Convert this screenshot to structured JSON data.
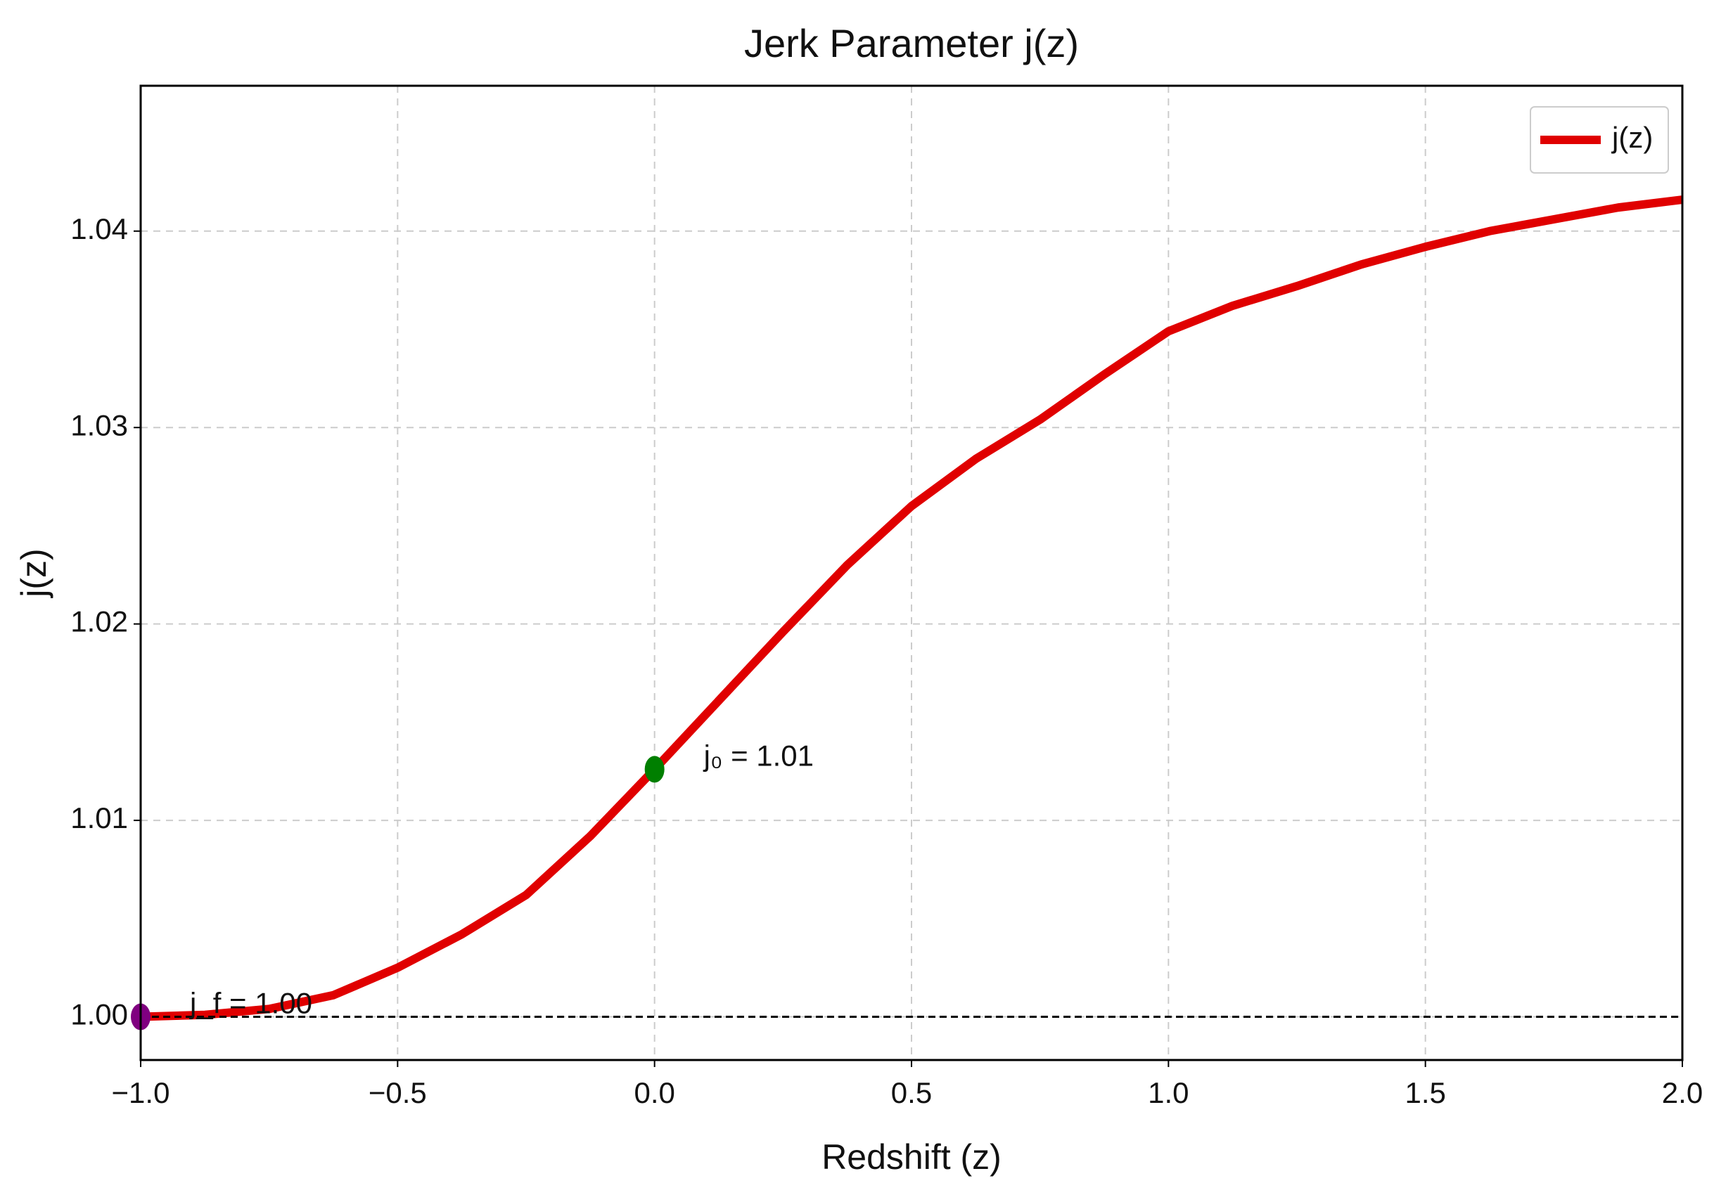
{
  "chart_data": {
    "type": "line",
    "title": "Jerk Parameter j(z)",
    "xlabel": "Redshift (z)",
    "ylabel": "j(z)",
    "x": [
      -1.0,
      -0.875,
      -0.75,
      -0.625,
      -0.5,
      -0.375,
      -0.25,
      -0.125,
      0.0,
      0.125,
      0.25,
      0.375,
      0.5,
      0.625,
      0.75,
      0.875,
      1.0,
      1.125,
      1.25,
      1.375,
      1.5,
      1.625,
      1.75,
      1.875,
      2.0
    ],
    "series": [
      {
        "name": "j(z)",
        "color": "#e00000",
        "values": [
          1.0,
          1.0001,
          1.0004,
          1.0011,
          1.0025,
          1.0042,
          1.0062,
          1.0092,
          1.0126,
          1.0161,
          1.0196,
          1.023,
          1.026,
          1.0284,
          1.0304,
          1.0327,
          1.0349,
          1.0362,
          1.0372,
          1.0383,
          1.0392,
          1.04,
          1.0406,
          1.0412,
          1.0416
        ]
      }
    ],
    "reference_line": {
      "y": 1.0,
      "color": "#000000"
    },
    "points": [
      {
        "x": 0.0,
        "y": 1.0126,
        "color": "#007f00",
        "label": "j₀ = 1.01"
      },
      {
        "x": -1.0,
        "y": 1.0,
        "color": "#800080",
        "label": "j_f = 1.00"
      }
    ],
    "xlim": [
      -1.0,
      2.0
    ],
    "ylim": [
      0.9978,
      1.0474
    ],
    "xticks": [
      {
        "value": -1.0,
        "label": "−1.0"
      },
      {
        "value": -0.5,
        "label": "−0.5"
      },
      {
        "value": 0.0,
        "label": "0.0"
      },
      0.5,
      {
        "value": 1.0,
        "label": "1.0"
      },
      1.5,
      {
        "value": 2.0,
        "label": "2.0"
      }
    ],
    "yticks": [
      {
        "value": 1.0,
        "label": "1.00"
      },
      1.01,
      1.02,
      1.03,
      1.04
    ],
    "grid": true,
    "legend": "upper right"
  }
}
